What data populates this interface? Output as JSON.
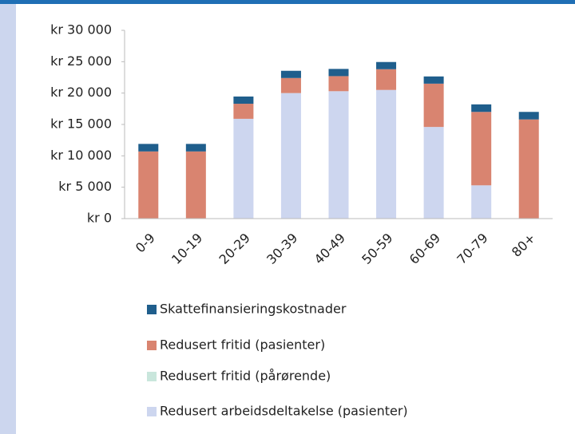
{
  "chart_data": {
    "type": "stacked_bar",
    "categories": [
      "0-9",
      "10-19",
      "20-29",
      "30-39",
      "40-49",
      "50-59",
      "60-69",
      "70-79",
      "80+"
    ],
    "series": [
      {
        "name": "Redusert arbeidsdeltakelse (pasienter)",
        "color": "#cdd6ef",
        "values": [
          0,
          0,
          15900,
          20000,
          20300,
          20500,
          14600,
          5300,
          0
        ]
      },
      {
        "name": "Redusert fritid (pårørende)",
        "color": "#c9e6dc",
        "values": [
          0,
          0,
          0,
          0,
          0,
          0,
          0,
          0,
          0
        ]
      },
      {
        "name": "Redusert fritid (pasienter)",
        "color": "#d98470",
        "values": [
          10700,
          10700,
          2400,
          2400,
          2400,
          3300,
          6900,
          11700,
          15800
        ]
      },
      {
        "name": "Skattefinansieringskostnader",
        "color": "#1f5e8c",
        "values": [
          1200,
          1200,
          1150,
          1150,
          1150,
          1150,
          1150,
          1200,
          1200
        ]
      }
    ],
    "ylim": [
      0,
      30000
    ],
    "yticks": [
      {
        "value": 0,
        "label": "kr 0"
      },
      {
        "value": 5000,
        "label": "kr 5 000"
      },
      {
        "value": 10000,
        "label": "kr 10 000"
      },
      {
        "value": 15000,
        "label": "kr 15 000"
      },
      {
        "value": 20000,
        "label": "kr 20 000"
      },
      {
        "value": 25000,
        "label": "kr 25 000"
      },
      {
        "value": 30000,
        "label": "kr 30 000"
      }
    ],
    "grid": false,
    "legend": "bottom"
  }
}
